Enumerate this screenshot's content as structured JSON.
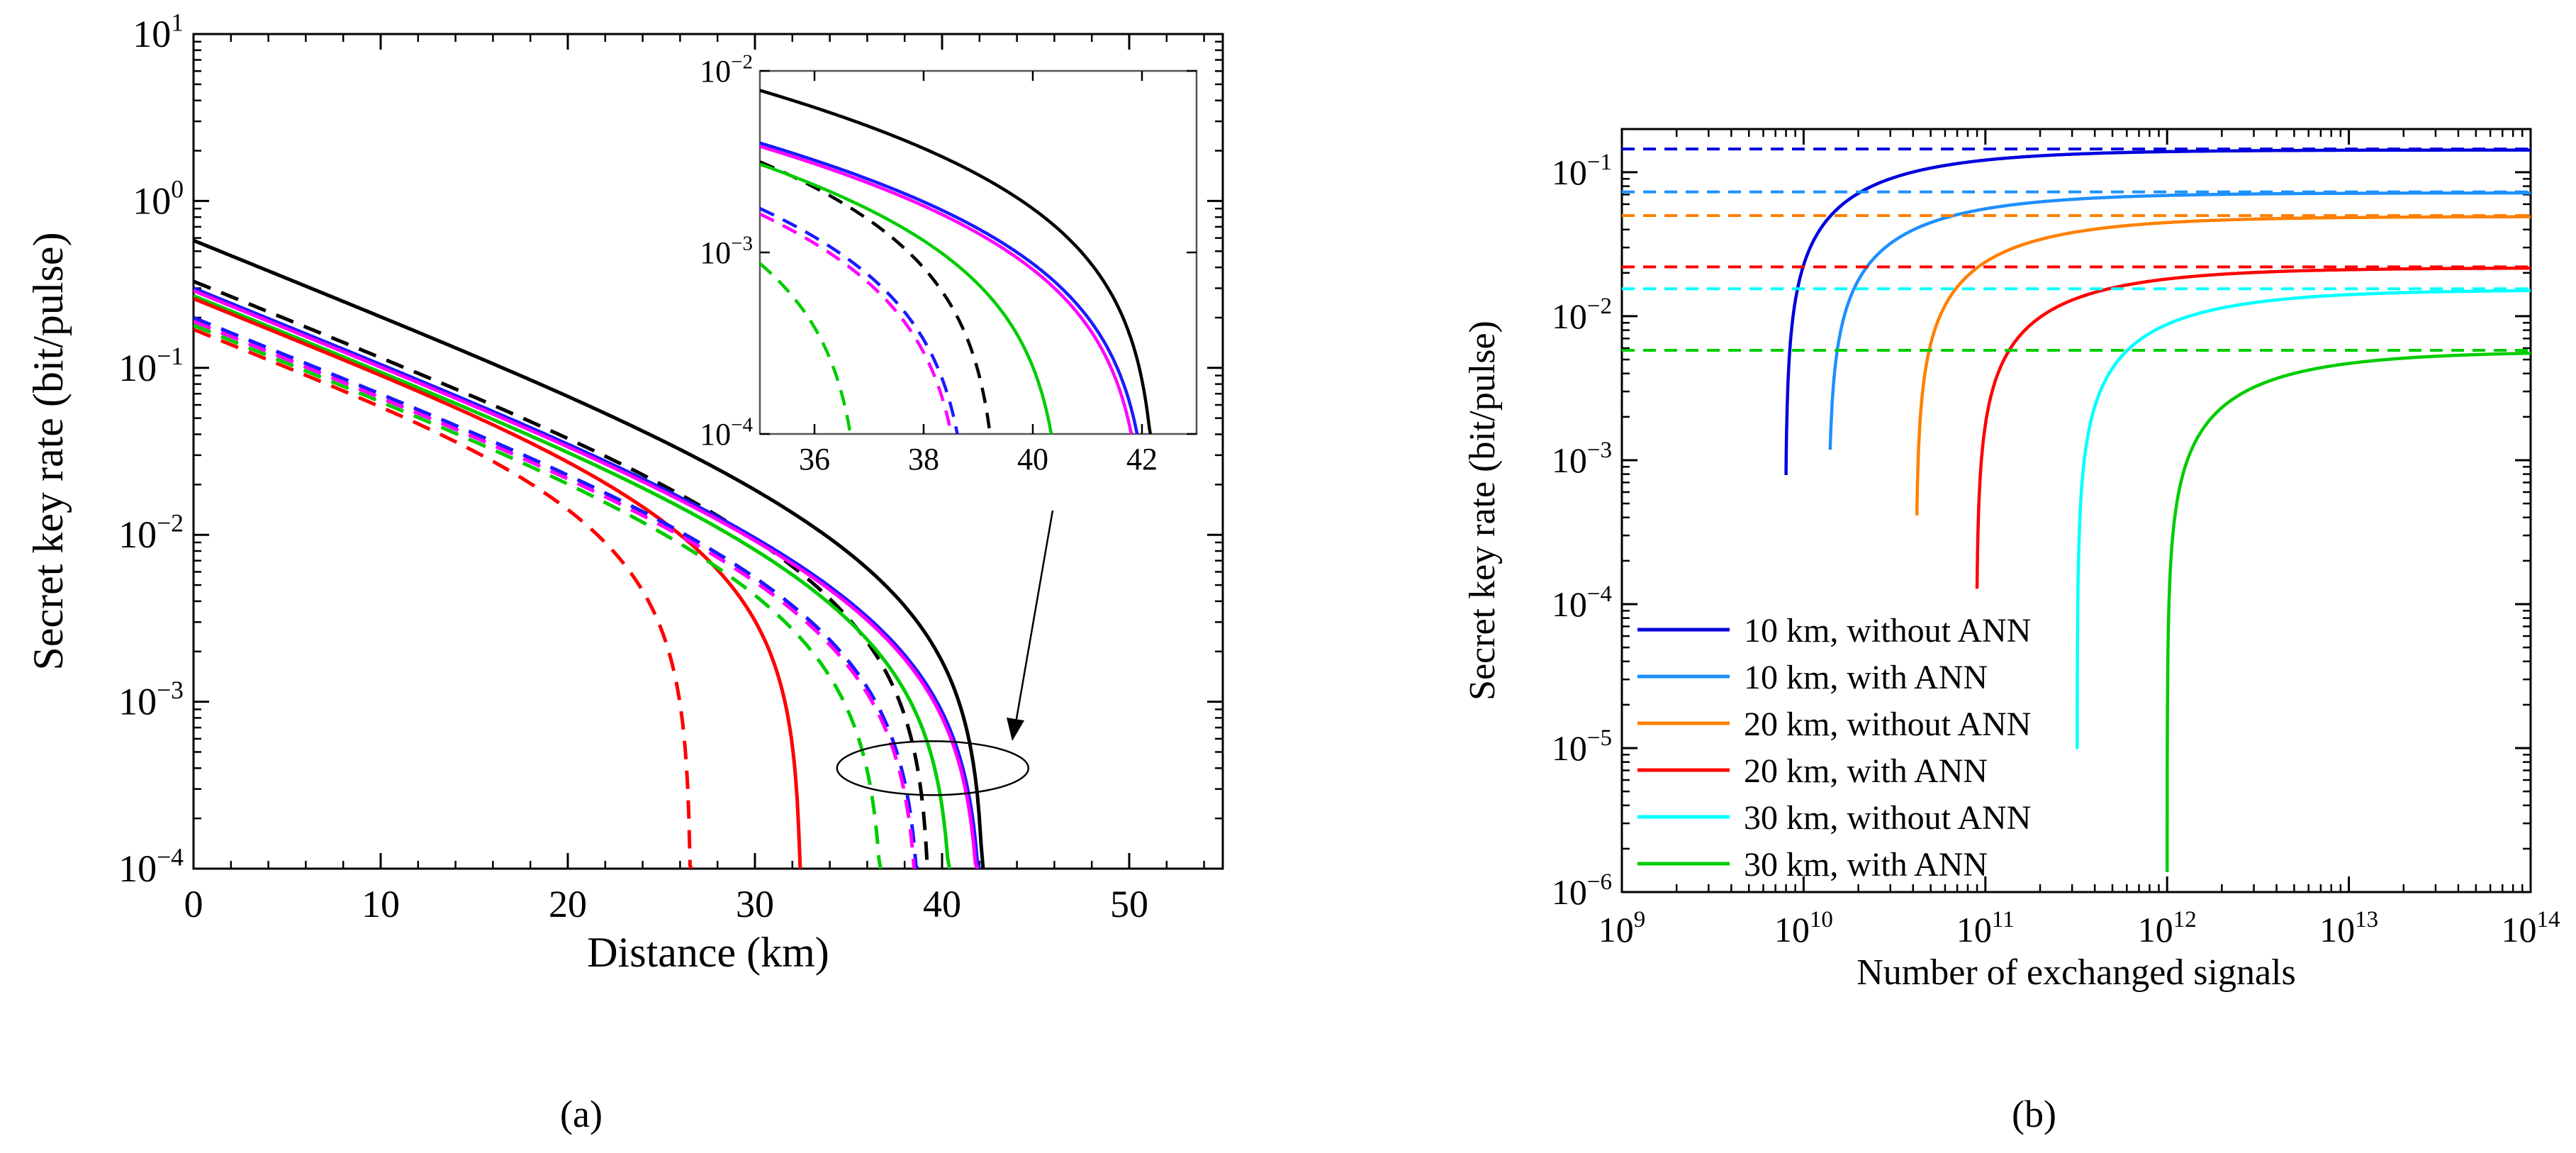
{
  "chart_data": [
    {
      "panel": "(a)",
      "type": "line",
      "xlabel": "Distance (km)",
      "ylabel": "Secret key rate (bit/pulse)",
      "xlim": [
        0,
        55
      ],
      "ylim_exp": [
        -4,
        1
      ],
      "yscale": "log",
      "x_ticks": [
        0,
        10,
        20,
        30,
        40,
        50
      ],
      "y_tick_exponents": [
        -4,
        -3,
        -2,
        -1,
        0,
        1
      ],
      "series": [
        {
          "name": "black solid",
          "color": "#000000",
          "dashed": false,
          "y0": 0.58,
          "end": 42.3
        },
        {
          "name": "black dashed",
          "color": "#000000",
          "dashed": true,
          "y0": 0.33,
          "end": 39.4
        },
        {
          "name": "blue solid",
          "color": "#1a1aff",
          "dashed": false,
          "y0": 0.3,
          "end": 42.2
        },
        {
          "name": "magenta solid",
          "color": "#ff00ff",
          "dashed": false,
          "y0": 0.29,
          "end": 42.1
        },
        {
          "name": "green solid",
          "color": "#00cc00",
          "dashed": false,
          "y0": 0.27,
          "end": 40.6
        },
        {
          "name": "red solid",
          "color": "#ff0000",
          "dashed": false,
          "y0": 0.26,
          "end": 32.5
        },
        {
          "name": "blue dashed",
          "color": "#1a1aff",
          "dashed": true,
          "y0": 0.2,
          "end": 38.9
        },
        {
          "name": "magenta dashed",
          "color": "#ff00ff",
          "dashed": true,
          "y0": 0.19,
          "end": 38.8
        },
        {
          "name": "green dashed",
          "color": "#00cc00",
          "dashed": true,
          "y0": 0.18,
          "end": 36.9
        },
        {
          "name": "red dashed",
          "color": "#ff0000",
          "dashed": true,
          "y0": 0.17,
          "end": 26.6
        }
      ],
      "inset": {
        "xlim": [
          35,
          43
        ],
        "ylim_exp": [
          -4,
          -2
        ],
        "x_ticks": [
          36,
          38,
          40,
          42
        ],
        "y_tick_exponents": [
          -4,
          -3,
          -2
        ]
      }
    },
    {
      "panel": "(b)",
      "type": "line",
      "xlabel": "Number of exchanged signals",
      "ylabel": "Secret key rate (bit/pulse)",
      "xscale": "log",
      "yscale": "log",
      "xlim_exp": [
        9,
        14
      ],
      "ylim_exp": [
        -6,
        -0.7
      ],
      "x_tick_exponents": [
        9,
        10,
        11,
        12,
        13,
        14
      ],
      "y_tick_exponents": [
        -6,
        -5,
        -4,
        -3,
        -2,
        -1
      ],
      "series": [
        {
          "name": "10 km, without ANN",
          "color": "#0000dd",
          "asymptote": 0.145,
          "n_start": 8000000000.0,
          "y_start": 0.0008
        },
        {
          "name": "10 km, with ANN",
          "color": "#1e90ff",
          "asymptote": 0.073,
          "n_start": 14000000000.0,
          "y_start": 0.0012
        },
        {
          "name": "20 km, without ANN",
          "color": "#ff8000",
          "asymptote": 0.05,
          "n_start": 42000000000.0,
          "y_start": 0.00042
        },
        {
          "name": "20 km, with ANN",
          "color": "#ff0000",
          "asymptote": 0.022,
          "n_start": 90000000000.0,
          "y_start": 0.00013
        },
        {
          "name": "30 km, without ANN",
          "color": "#00ffff",
          "asymptote": 0.0155,
          "n_start": 320000000000.0,
          "y_start": 1e-05
        },
        {
          "name": "30 km, with ANN",
          "color": "#00cc00",
          "asymptote": 0.0058,
          "n_start": 1000000000000.0,
          "y_start": 1.4e-06
        }
      ]
    }
  ],
  "captions": {
    "a": "(a)",
    "b": "(b)"
  }
}
